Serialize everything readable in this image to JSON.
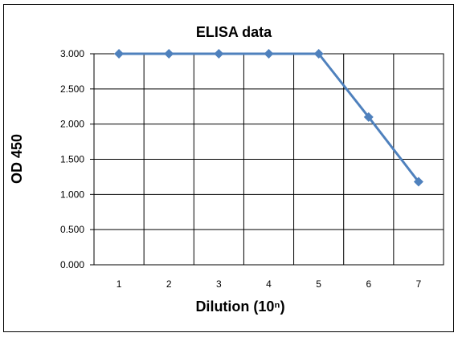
{
  "chart_data": {
    "type": "line",
    "title": "ELISA data",
    "xlabel": "Dilution (10ⁿ)",
    "ylabel": "OD 450",
    "categories": [
      "1",
      "2",
      "3",
      "4",
      "5",
      "6",
      "7"
    ],
    "series": [
      {
        "values": [
          3.0,
          3.0,
          3.0,
          3.0,
          3.0,
          2.1,
          1.18
        ],
        "color": "#4f81bd",
        "marker": "diamond"
      }
    ],
    "yticks": [
      "0.000",
      "0.500",
      "1.000",
      "1.500",
      "2.000",
      "2.500",
      "3.000"
    ],
    "ylim": [
      0,
      3
    ],
    "grid": true,
    "legend": "none"
  }
}
